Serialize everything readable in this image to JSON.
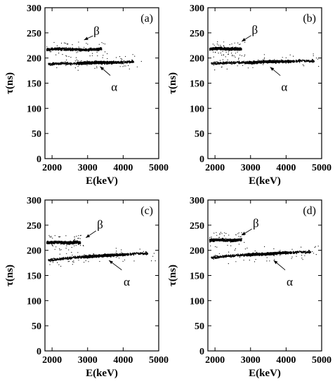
{
  "chart_data": [
    {
      "type": "scatter",
      "panel_label": "(a)",
      "xlabel": "E(keV)",
      "ylabel": "τ(ns)",
      "xlim": [
        1800,
        5000
      ],
      "ylim": [
        0,
        300
      ],
      "xticks": [
        2000,
        3000,
        4000,
        5000
      ],
      "yticks": [
        0,
        50,
        100,
        150,
        200,
        250,
        300
      ],
      "series": [
        {
          "values": [
            [
              1850,
              217
            ],
            [
              2200,
              218
            ],
            [
              2500,
              217
            ],
            [
              2700,
              217
            ],
            [
              2900,
              216
            ],
            [
              3100,
              217
            ],
            [
              3400,
              218
            ]
          ]
        },
        {
          "values": [
            [
              1900,
              188
            ],
            [
              2300,
              189
            ],
            [
              2600,
              189
            ],
            [
              2900,
              190
            ],
            [
              3200,
              191
            ],
            [
              3500,
              191
            ],
            [
              3800,
              191
            ],
            [
              4100,
              192
            ],
            [
              4300,
              193
            ]
          ]
        }
      ],
      "annotations": [
        {
          "text": "β",
          "x": 3250,
          "y": 255,
          "arrow_to": [
            2900,
            236
          ]
        },
        {
          "text": "α",
          "x": 3750,
          "y": 143,
          "arrow_to": [
            3350,
            183
          ]
        }
      ]
    },
    {
      "type": "scatter",
      "panel_label": "(b)",
      "xlabel": "E(keV)",
      "ylabel": "τ(ns)",
      "xlim": [
        1800,
        5000
      ],
      "ylim": [
        0,
        300
      ],
      "xticks": [
        2000,
        3000,
        4000,
        5000
      ],
      "yticks": [
        0,
        50,
        100,
        150,
        200,
        250,
        300
      ],
      "series": [
        {
          "values": [
            [
              1850,
              218
            ],
            [
              2100,
              219
            ],
            [
              2350,
              218
            ],
            [
              2600,
              218
            ],
            [
              2750,
              218
            ]
          ]
        },
        {
          "values": [
            [
              1900,
              189
            ],
            [
              2300,
              190
            ],
            [
              2700,
              191
            ],
            [
              3100,
              191
            ],
            [
              3400,
              193
            ],
            [
              3700,
              193
            ],
            [
              4000,
              193
            ],
            [
              4300,
              194
            ],
            [
              4800,
              194
            ]
          ]
        }
      ],
      "annotations": [
        {
          "text": "β",
          "x": 3120,
          "y": 257,
          "arrow_to": [
            2750,
            233
          ]
        },
        {
          "text": "α",
          "x": 3950,
          "y": 143,
          "arrow_to": [
            3550,
            182
          ]
        }
      ]
    },
    {
      "type": "scatter",
      "panel_label": "(c)",
      "xlabel": "E(keV)",
      "ylabel": "τ(ns)",
      "xlim": [
        1800,
        5000
      ],
      "ylim": [
        0,
        300
      ],
      "xticks": [
        2000,
        3000,
        4000,
        5000
      ],
      "yticks": [
        0,
        50,
        100,
        150,
        200,
        250,
        300
      ],
      "series": [
        {
          "values": [
            [
              1850,
              215
            ],
            [
              2100,
              216
            ],
            [
              2400,
              215
            ],
            [
              2700,
              216
            ],
            [
              2800,
              215
            ]
          ]
        },
        {
          "values": [
            [
              1900,
              180
            ],
            [
              2300,
              183
            ],
            [
              2700,
              186
            ],
            [
              3100,
              188
            ],
            [
              3500,
              190
            ],
            [
              3900,
              191
            ],
            [
              4300,
              193
            ],
            [
              4700,
              194
            ]
          ]
        }
      ],
      "annotations": [
        {
          "text": "β",
          "x": 3350,
          "y": 252,
          "arrow_to": [
            2950,
            225
          ]
        },
        {
          "text": "α",
          "x": 4100,
          "y": 138,
          "arrow_to": [
            3600,
            180
          ]
        }
      ]
    },
    {
      "type": "scatter",
      "panel_label": "(d)",
      "xlabel": "E(keV)",
      "ylabel": "τ(ns)",
      "xlim": [
        1800,
        5000
      ],
      "ylim": [
        0,
        300
      ],
      "xticks": [
        2000,
        3000,
        4000,
        5000
      ],
      "yticks": [
        0,
        50,
        100,
        150,
        200,
        250,
        300
      ],
      "series": [
        {
          "values": [
            [
              1850,
              220
            ],
            [
              2100,
              221
            ],
            [
              2350,
              220
            ],
            [
              2600,
              220
            ],
            [
              2750,
              221
            ]
          ]
        },
        {
          "values": [
            [
              1900,
              185
            ],
            [
              2300,
              188
            ],
            [
              2700,
              190
            ],
            [
              3100,
              192
            ],
            [
              3500,
              193
            ],
            [
              3900,
              195
            ],
            [
              4300,
              196
            ],
            [
              4700,
              197
            ]
          ]
        }
      ],
      "annotations": [
        {
          "text": "β",
          "x": 3150,
          "y": 255,
          "arrow_to": [
            2750,
            230
          ]
        },
        {
          "text": "α",
          "x": 4100,
          "y": 138,
          "arrow_to": [
            3650,
            180
          ]
        }
      ]
    }
  ]
}
